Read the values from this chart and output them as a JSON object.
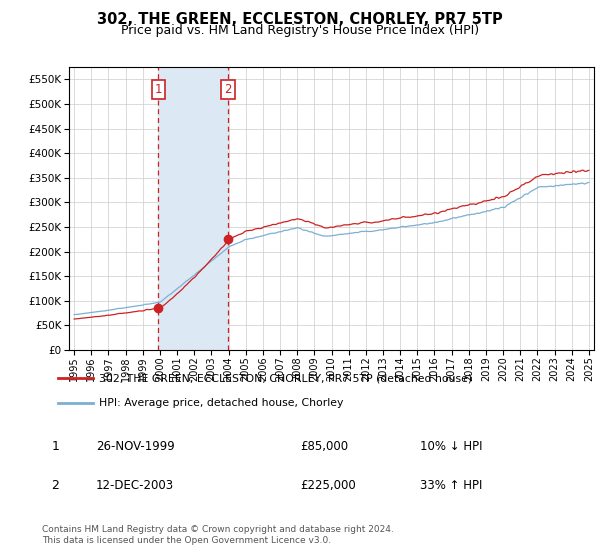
{
  "title": "302, THE GREEN, ECCLESTON, CHORLEY, PR7 5TP",
  "subtitle": "Price paid vs. HM Land Registry's House Price Index (HPI)",
  "title_fontsize": 10.5,
  "subtitle_fontsize": 9,
  "background_color": "#ffffff",
  "grid_color": "#cccccc",
  "hpi_line_color": "#7bafd4",
  "sale_line_color": "#cc2222",
  "highlight_fill": "#dce9f5",
  "ylim": [
    0,
    575000
  ],
  "yticks": [
    0,
    50000,
    100000,
    150000,
    200000,
    250000,
    300000,
    350000,
    400000,
    450000,
    500000,
    550000
  ],
  "sale1_year": 1999.9,
  "sale1_price": 85000,
  "sale2_year": 2003.96,
  "sale2_price": 225000,
  "legend_house_label": "302, THE GREEN, ECCLESTON, CHORLEY, PR7 5TP (detached house)",
  "legend_hpi_label": "HPI: Average price, detached house, Chorley",
  "footer": "Contains HM Land Registry data © Crown copyright and database right 2024.\nThis data is licensed under the Open Government Licence v3.0.",
  "table_rows": [
    [
      "1",
      "26-NOV-1999",
      "£85,000",
      "10% ↓ HPI"
    ],
    [
      "2",
      "12-DEC-2003",
      "£225,000",
      "33% ↑ HPI"
    ]
  ]
}
